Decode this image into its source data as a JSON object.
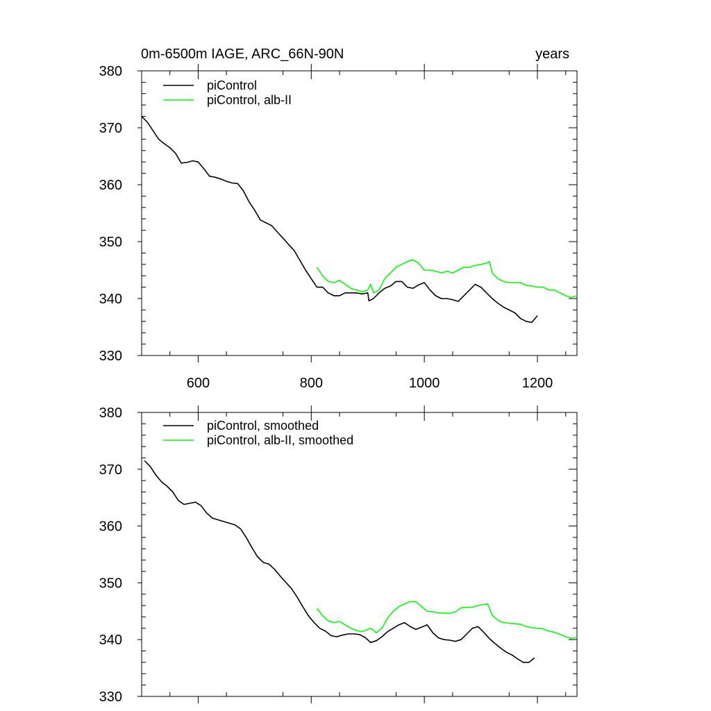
{
  "header": {
    "title": "0m-6500m IAGE, ARC_66N-90N",
    "units": "years"
  },
  "colors": {
    "picontrol": "#000000",
    "alb_ii": "#00ff00",
    "axis": "#000000",
    "background": "#ffffff"
  },
  "chart_data": [
    {
      "type": "line",
      "title": "0m-6500m IAGE, ARC_66N-90N",
      "units_label": "years",
      "xlabel": "",
      "ylabel": "",
      "xlim": [
        500,
        1270
      ],
      "ylim": [
        330,
        380
      ],
      "x_ticks": [
        600,
        800,
        1000,
        1200
      ],
      "x_tick_labels": [
        "600",
        "800",
        "1000",
        "1200"
      ],
      "y_ticks": [
        330,
        340,
        350,
        360,
        370,
        380
      ],
      "y_tick_labels": [
        "330",
        "340",
        "350",
        "360",
        "370",
        "380"
      ],
      "legend_position": "top-left",
      "series": [
        {
          "name": "piControl",
          "color": "#000000",
          "x": [
            500,
            510,
            520,
            530,
            540,
            550,
            560,
            570,
            580,
            590,
            600,
            610,
            620,
            630,
            640,
            650,
            660,
            670,
            680,
            690,
            700,
            710,
            720,
            730,
            740,
            750,
            760,
            770,
            780,
            790,
            800,
            810,
            820,
            830,
            840,
            850,
            860,
            870,
            880,
            890,
            900,
            902,
            910,
            920,
            930,
            940,
            950,
            960,
            970,
            980,
            990,
            1000,
            1010,
            1020,
            1030,
            1040,
            1050,
            1060,
            1070,
            1080,
            1090,
            1100,
            1110,
            1120,
            1130,
            1140,
            1150,
            1160,
            1170,
            1180,
            1190,
            1200
          ],
          "y": [
            372,
            371,
            369.5,
            368,
            367.2,
            366.5,
            365.5,
            363.8,
            363.9,
            364.2,
            364,
            362.8,
            361.5,
            361.3,
            361,
            360.6,
            360.3,
            360.2,
            358.9,
            357,
            355.5,
            353.8,
            353.3,
            352.8,
            351.7,
            350.6,
            349.5,
            348.4,
            346.7,
            345,
            343.5,
            342,
            342,
            341,
            340.5,
            340.5,
            341,
            341,
            341,
            340.8,
            341,
            339.6,
            340,
            341,
            341.8,
            342.2,
            343,
            343,
            342,
            341.8,
            342.4,
            342.8,
            341.5,
            340.5,
            340,
            340,
            339.8,
            339.5,
            340.5,
            341.5,
            342.5,
            342,
            341,
            340,
            339.2,
            338.5,
            338,
            337.5,
            336.5,
            336,
            335.8,
            337
          ]
        },
        {
          "name": "piControl, alb-II",
          "color": "#00ff00",
          "x": [
            810,
            820,
            830,
            840,
            850,
            860,
            870,
            880,
            890,
            900,
            905,
            910,
            920,
            930,
            940,
            950,
            960,
            970,
            980,
            990,
            1000,
            1010,
            1020,
            1030,
            1040,
            1050,
            1060,
            1070,
            1080,
            1090,
            1100,
            1110,
            1115,
            1120,
            1130,
            1140,
            1150,
            1160,
            1170,
            1180,
            1190,
            1200,
            1210,
            1220,
            1230,
            1240,
            1250,
            1260,
            1270
          ],
          "y": [
            345.5,
            344,
            343,
            342.8,
            343.2,
            342.5,
            341.8,
            341.5,
            341.2,
            341.5,
            342.5,
            341,
            341.5,
            343.5,
            344.5,
            345.5,
            346,
            346.5,
            346.8,
            346.2,
            345,
            345,
            344.8,
            344.5,
            344.8,
            344.5,
            345,
            345.5,
            345.5,
            345.8,
            346,
            346.2,
            346.5,
            344.5,
            343.5,
            343,
            342.8,
            342.8,
            342.8,
            342.3,
            342.2,
            342,
            342,
            341.5,
            341.5,
            341,
            340.5,
            340.2,
            340.5
          ]
        }
      ]
    },
    {
      "type": "line",
      "title": "",
      "xlabel": "",
      "ylabel": "",
      "xlim": [
        500,
        1270
      ],
      "ylim": [
        330,
        380
      ],
      "x_ticks": [
        600,
        800,
        1000,
        1200
      ],
      "x_tick_labels": [],
      "y_ticks": [
        330,
        340,
        350,
        360,
        370,
        380
      ],
      "y_tick_labels": [
        "330",
        "340",
        "350",
        "360",
        "370",
        "380"
      ],
      "legend_position": "top-left",
      "series": [
        {
          "name": "piControl, smoothed",
          "color": "#000000",
          "x": [
            505,
            515,
            525,
            535,
            545,
            555,
            565,
            575,
            585,
            595,
            605,
            615,
            625,
            635,
            645,
            655,
            665,
            675,
            685,
            695,
            705,
            715,
            725,
            735,
            745,
            755,
            765,
            775,
            785,
            795,
            805,
            815,
            825,
            835,
            845,
            855,
            865,
            875,
            885,
            895,
            905,
            915,
            925,
            935,
            945,
            955,
            965,
            975,
            985,
            995,
            1005,
            1015,
            1025,
            1035,
            1045,
            1055,
            1065,
            1075,
            1085,
            1095,
            1105,
            1115,
            1125,
            1135,
            1145,
            1155,
            1165,
            1175,
            1185,
            1195
          ],
          "y": [
            371.5,
            370.5,
            369,
            367.8,
            367,
            366,
            364.5,
            363.8,
            364,
            364.2,
            363.6,
            362.3,
            361.4,
            361.1,
            360.8,
            360.5,
            360.2,
            359.5,
            358,
            356.2,
            354.6,
            353.6,
            353.3,
            352.4,
            351.2,
            350.1,
            349,
            347.5,
            345.8,
            344.2,
            343,
            342,
            341.5,
            340.7,
            340.5,
            340.8,
            341,
            341,
            340.9,
            340.4,
            339.5,
            339.8,
            340.5,
            341.4,
            342,
            342.6,
            343,
            342.3,
            341.8,
            342.2,
            342.6,
            341.2,
            340.3,
            340,
            339.9,
            339.7,
            340,
            341,
            342,
            342.3,
            341.3,
            340.2,
            339.3,
            338.5,
            337.8,
            337.3,
            336.6,
            336,
            336,
            336.8
          ]
        },
        {
          "name": "piControl, alb-II, smoothed",
          "color": "#00ff00",
          "x": [
            810,
            820,
            830,
            840,
            850,
            860,
            870,
            880,
            890,
            900,
            905,
            915,
            925,
            935,
            945,
            955,
            965,
            975,
            985,
            995,
            1005,
            1015,
            1025,
            1035,
            1045,
            1055,
            1065,
            1075,
            1085,
            1095,
            1105,
            1112,
            1120,
            1130,
            1140,
            1150,
            1160,
            1170,
            1180,
            1190,
            1200,
            1210,
            1220,
            1230,
            1240,
            1250,
            1260,
            1270
          ],
          "y": [
            345.5,
            344.2,
            343.3,
            343,
            343.2,
            342.6,
            342,
            341.6,
            341.4,
            341.8,
            342,
            341.2,
            342,
            343.8,
            345,
            345.8,
            346.3,
            346.7,
            346.7,
            345.8,
            345,
            344.9,
            344.7,
            344.7,
            344.6,
            344.9,
            345.6,
            345.7,
            345.7,
            346,
            346.2,
            346.3,
            344.3,
            343.4,
            343,
            342.9,
            342.8,
            342.7,
            342.3,
            342.1,
            342,
            341.9,
            341.5,
            341.3,
            340.9,
            340.5,
            340.2,
            340.4
          ]
        }
      ]
    }
  ]
}
